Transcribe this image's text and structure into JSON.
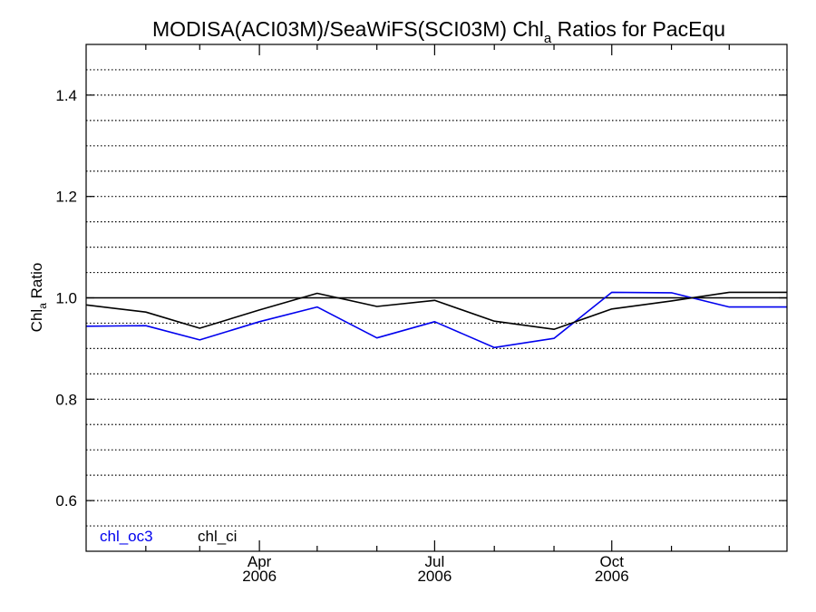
{
  "chart_data": {
    "type": "line",
    "title_main": "MODISA(ACI03M)/SeaWiFS(SCI03M)  Chl",
    "title_sub": "a",
    "title_rest": " Ratios for PacEqu",
    "ylabel_main": "Chl",
    "ylabel_sub": "a",
    "ylabel_rest": " Ratio",
    "ylim": [
      0.5,
      1.5
    ],
    "xlim": [
      "2006-01-01",
      "2006-12-31"
    ],
    "y_major_ticks": [
      0.6,
      0.8,
      1.0,
      1.2,
      1.4
    ],
    "y_major_tick_labels": [
      "0.6",
      "0.8",
      "1.0",
      "1.2",
      "1.4"
    ],
    "y_gridlines": [
      0.55,
      0.6,
      0.65,
      0.7,
      0.75,
      0.8,
      0.85,
      0.9,
      0.95,
      1.05,
      1.1,
      1.15,
      1.2,
      1.25,
      1.3,
      1.35,
      1.4,
      1.45
    ],
    "grid": "horizontal dotted",
    "reference_line": 1.0,
    "x_major_ticks": [
      {
        "date": "2006-04-01",
        "month": "Apr",
        "year": "2006"
      },
      {
        "date": "2006-07-01",
        "month": "Jul",
        "year": "2006"
      },
      {
        "date": "2006-10-01",
        "month": "Oct",
        "year": "2006"
      }
    ],
    "x_minor_ticks": [
      "2006-02-01",
      "2006-03-01",
      "2006-05-01",
      "2006-06-01",
      "2006-08-01",
      "2006-09-01",
      "2006-11-01",
      "2006-12-01"
    ],
    "legend_position": "bottom-left",
    "series": [
      {
        "name": "chl_oc3",
        "color": "#0000ee",
        "x": [
          "2006-01-01",
          "2006-02-01",
          "2006-03-01",
          "2006-04-01",
          "2006-05-01",
          "2006-06-01",
          "2006-07-01",
          "2006-08-01",
          "2006-09-01",
          "2006-10-01",
          "2006-11-01",
          "2006-12-01",
          "2006-12-31"
        ],
        "values": [
          0.944,
          0.945,
          0.917,
          0.953,
          0.982,
          0.921,
          0.953,
          0.902,
          0.92,
          1.011,
          1.01,
          0.982,
          0.982
        ]
      },
      {
        "name": "chl_ci",
        "color": "#000000",
        "x": [
          "2006-01-01",
          "2006-02-01",
          "2006-03-01",
          "2006-04-01",
          "2006-05-01",
          "2006-06-01",
          "2006-07-01",
          "2006-08-01",
          "2006-09-01",
          "2006-10-01",
          "2006-11-01",
          "2006-12-01",
          "2006-12-31"
        ],
        "values": [
          0.986,
          0.972,
          0.94,
          0.976,
          1.009,
          0.983,
          0.995,
          0.954,
          0.938,
          0.978,
          0.994,
          1.011,
          1.011
        ]
      }
    ]
  }
}
